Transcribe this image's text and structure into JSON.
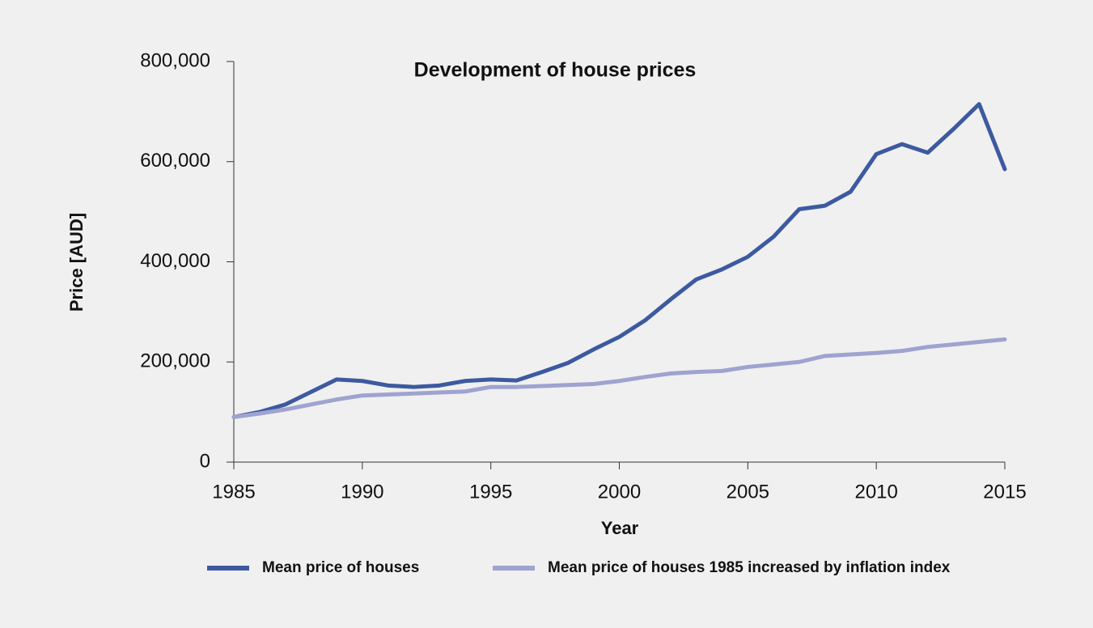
{
  "chart_data": {
    "type": "line",
    "title": "Development of house prices",
    "xlabel": "Year",
    "ylabel": "Price [AUD]",
    "x": [
      1985,
      1986,
      1987,
      1988,
      1989,
      1990,
      1991,
      1992,
      1993,
      1994,
      1995,
      1996,
      1997,
      1998,
      1999,
      2000,
      2001,
      2002,
      2003,
      2004,
      2005,
      2006,
      2007,
      2008,
      2009,
      2010,
      2011,
      2012,
      2013,
      2014,
      2015
    ],
    "series": [
      {
        "name": "Mean price of houses",
        "color": "#3d5aa0",
        "values": [
          90000,
          100000,
          115000,
          140000,
          165000,
          162000,
          153000,
          150000,
          153000,
          162000,
          165000,
          163000,
          180000,
          198000,
          225000,
          250000,
          283000,
          325000,
          365000,
          385000,
          410000,
          450000,
          505000,
          512000,
          540000,
          615000,
          635000,
          618000,
          665000,
          715000,
          585000
        ]
      },
      {
        "name": "Mean price of houses 1985 increased by inflation index",
        "color": "#9ea3cf",
        "values": [
          90000,
          97000,
          105000,
          115000,
          125000,
          133000,
          135000,
          137000,
          139000,
          141000,
          150000,
          150000,
          152000,
          154000,
          156000,
          162000,
          170000,
          177000,
          180000,
          182000,
          190000,
          195000,
          200000,
          212000,
          215000,
          218000,
          222000,
          230000,
          235000,
          240000,
          245000
        ]
      }
    ],
    "xlim": [
      1985,
      2015
    ],
    "xticks": [
      1985,
      1990,
      1995,
      2000,
      2005,
      2010,
      2015
    ],
    "ylim": [
      0,
      800000
    ],
    "yticks": [
      0,
      {
        "value": 200000,
        "label": "200,000"
      },
      {
        "value": 400000,
        "label": "400,000"
      },
      {
        "value": 600000,
        "label": "600,000"
      },
      {
        "value": 800000,
        "label": "800,000"
      }
    ],
    "legend": "bottom"
  }
}
